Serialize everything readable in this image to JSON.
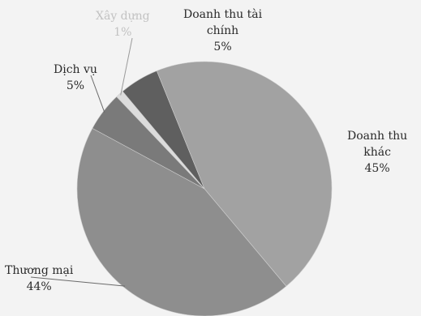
{
  "chart_data": {
    "type": "pie",
    "title": "",
    "slices": [
      {
        "label": "Doanh thu khác",
        "label_lines": [
          "Doanh thu",
          "khác"
        ],
        "value": 45,
        "display": "45%",
        "color": "#a2a2a2"
      },
      {
        "label": "Thương mại",
        "label_lines": [
          "Thương mại"
        ],
        "value": 44,
        "display": "44%",
        "color": "#8e8e8e"
      },
      {
        "label": "Dịch vụ",
        "label_lines": [
          "Dịch vụ"
        ],
        "value": 5,
        "display": "5%",
        "color": "#7a7a7a"
      },
      {
        "label": "Xây dựng",
        "label_lines": [
          "Xây dựng"
        ],
        "value": 1,
        "display": "1%",
        "color": "#dcdcdc"
      },
      {
        "label": "Doanh thu tài chính",
        "label_lines": [
          "Doanh thu tài",
          "chính"
        ],
        "value": 5,
        "display": "5%",
        "color": "#5f5f5f"
      }
    ],
    "legend": "none"
  }
}
